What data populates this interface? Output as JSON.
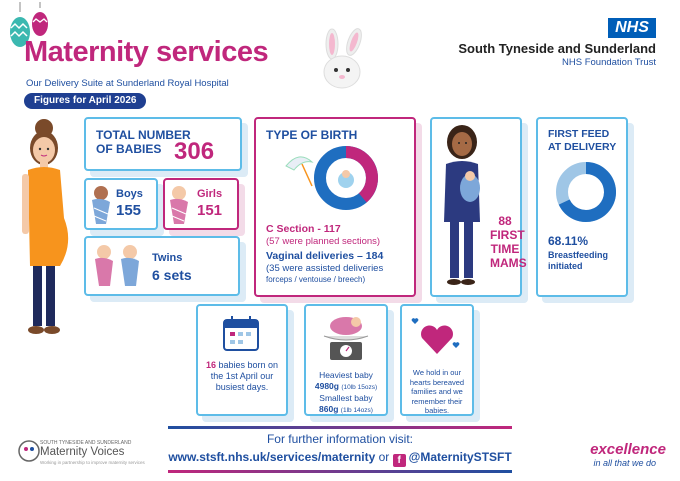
{
  "header": {
    "title": "Maternity services",
    "subtitle": "Our Delivery Suite at Sunderland Royal Hospital",
    "month": "Figures for April 2026",
    "nhs_logo": "NHS",
    "trust_name": "South Tyneside and Sunderland",
    "trust_sub": "NHS Foundation Trust"
  },
  "babies": {
    "total_label_1": "TOTAL NUMBER",
    "total_label_2": "OF BABIES",
    "total_value": "306",
    "boys_label": "Boys",
    "boys_value": "155",
    "girls_label": "Girls",
    "girls_value": "151",
    "twins_label": "Twins",
    "twins_value": "6 sets"
  },
  "birth_type": {
    "heading": "TYPE OF BIRTH",
    "csection": "C Section - 117",
    "csection_note": "(57 were planned sections)",
    "vaginal": "Vaginal deliveries – 184",
    "vaginal_note": "(35 were assisted deliveries",
    "vaginal_note_2": "forceps / ventouse / breech)"
  },
  "first_time": {
    "value": "88",
    "line1": "FIRST",
    "line2": "TIME",
    "line3": "MAMS"
  },
  "feed": {
    "heading_1": "FIRST FEED",
    "heading_2": "AT DELIVERY",
    "percent": "68.11%",
    "label_1": "Breastfeeding",
    "label_2": "initiated"
  },
  "april_first": {
    "count": "16",
    "text_1": "babies born on",
    "text_2": "the 1st April our",
    "text_3": "busiest days."
  },
  "weights": {
    "heaviest_label": "Heaviest baby",
    "heaviest_g": "4980g",
    "heaviest_lb": "(10lb 15ozs)",
    "smallest_label": "Smallest baby",
    "smallest_g": "860g",
    "smallest_lb": "(1lb 14ozs)"
  },
  "bereaved": {
    "line1": "We hold in our",
    "line2": "hearts bereaved",
    "line3": "families and we",
    "line4": "remember their",
    "line5": "babies."
  },
  "footer": {
    "info_title": "For further information visit:",
    "url": "www.stsft.nhs.uk/services/maternity",
    "or": "or",
    "social": "@MaternitySTSFT",
    "mv_small": "SOUTH TYNESIDE AND SUNDERLAND",
    "mv_name": "Maternity Voices",
    "mv_tag": "Working in partnership to improve maternity services",
    "excellence": "excellence",
    "excellence_tag": "in all that we do"
  },
  "colors": {
    "pink": "#c0277c",
    "blue": "#1f4fa0",
    "light_blue": "#5dbce8",
    "nhs_blue": "#005eb8"
  },
  "chart_data": [
    {
      "type": "pie",
      "categories": [
        "C Section",
        "Vaginal deliveries"
      ],
      "values": [
        117,
        184
      ],
      "title": ""
    },
    {
      "type": "pie",
      "categories": [
        "Breastfeeding initiated",
        "Other"
      ],
      "values": [
        68.11,
        31.89
      ],
      "title": ""
    }
  ]
}
